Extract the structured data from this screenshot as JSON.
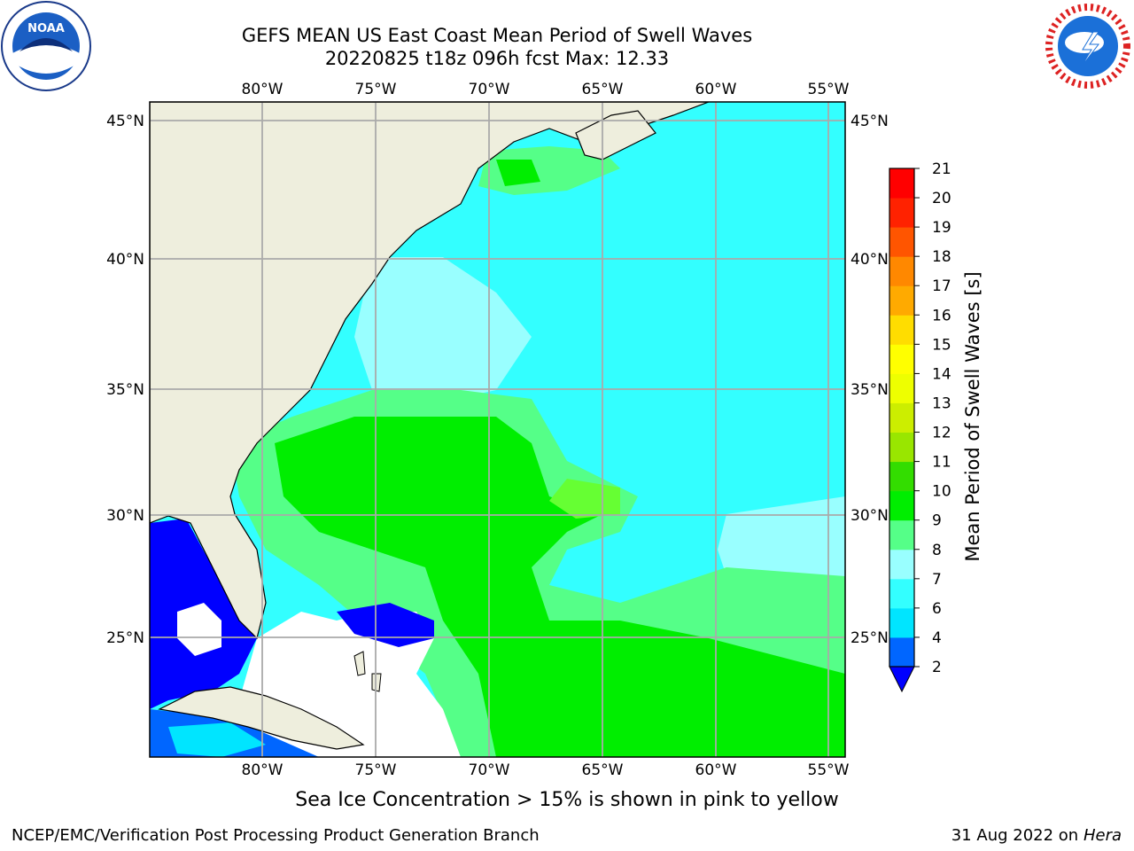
{
  "header": {
    "title_line1": "GEFS MEAN US East Coast Mean Period of Swell Waves",
    "title_line2": "20220825 t18z 096h fcst   Max: 12.33"
  },
  "map": {
    "lon_ticks_top": [
      "80°W",
      "75°W",
      "70°W",
      "65°W",
      "60°W",
      "55°W"
    ],
    "lon_ticks_bottom": [
      "80°W",
      "75°W",
      "70°W",
      "65°W",
      "60°W",
      "55°W"
    ],
    "lat_ticks_left": [
      "45°N",
      "40°N",
      "35°N",
      "30°N",
      "25°N"
    ],
    "lat_ticks_right": [
      "45°N",
      "40°N",
      "35°N",
      "30°N",
      "25°N"
    ],
    "colors": {
      "land": "#eeeedd",
      "ocean_low": "#00ffff",
      "ocean_mid": "#55ff88",
      "ocean_high": "#00ee00",
      "missing": "#ffffff",
      "deep_blue": "#0000ff"
    }
  },
  "colorbar": {
    "label": "Mean Period of Swell Waves [s]",
    "levels": [
      "2",
      "4",
      "6",
      "7",
      "8",
      "9",
      "10",
      "11",
      "12",
      "13",
      "14",
      "15",
      "16",
      "17",
      "18",
      "19",
      "20",
      "21"
    ],
    "colors": [
      "#0066ff",
      "#00e5ff",
      "#33ffff",
      "#99ffff",
      "#55ff88",
      "#00ee00",
      "#33dd00",
      "#99e600",
      "#ccee00",
      "#eeff00",
      "#ffff00",
      "#ffdd00",
      "#ffaa00",
      "#ff8800",
      "#ff5500",
      "#ff2200",
      "#ff0000"
    ],
    "under_color": "#0000ff"
  },
  "footer": {
    "note": "Sea Ice Concentration > 15% is shown in pink to yellow",
    "credit": "NCEP/EMC/Verification Post Processing Product Generation Branch",
    "date": "31 Aug 2022 on",
    "machine": "Hera"
  },
  "logos": {
    "left": "noaa-logo",
    "right": "nws-logo"
  }
}
